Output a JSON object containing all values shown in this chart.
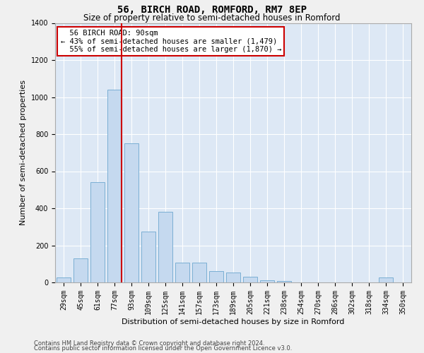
{
  "title": "56, BIRCH ROAD, ROMFORD, RM7 8EP",
  "subtitle": "Size of property relative to semi-detached houses in Romford",
  "xlabel": "Distribution of semi-detached houses by size in Romford",
  "ylabel": "Number of semi-detached properties",
  "categories": [
    "29sqm",
    "45sqm",
    "61sqm",
    "77sqm",
    "93sqm",
    "109sqm",
    "125sqm",
    "141sqm",
    "157sqm",
    "173sqm",
    "189sqm",
    "205sqm",
    "221sqm",
    "238sqm",
    "254sqm",
    "270sqm",
    "286sqm",
    "302sqm",
    "318sqm",
    "334sqm",
    "350sqm"
  ],
  "values": [
    28,
    130,
    540,
    1040,
    750,
    275,
    380,
    105,
    105,
    60,
    55,
    30,
    10,
    8,
    0,
    0,
    0,
    0,
    0,
    28,
    0
  ],
  "bar_color": "#c5d9ef",
  "bar_edge_color": "#7bafd4",
  "red_line_color": "#cc0000",
  "annotation_box_facecolor": "#ffffff",
  "annotation_box_edgecolor": "#cc0000",
  "property_label": "56 BIRCH ROAD: 90sqm",
  "pct_smaller": 43,
  "pct_larger": 55,
  "n_smaller": 1479,
  "n_larger": 1870,
  "footer_line1": "Contains HM Land Registry data © Crown copyright and database right 2024.",
  "footer_line2": "Contains public sector information licensed under the Open Government Licence v3.0.",
  "plot_bg_color": "#dde8f5",
  "fig_bg_color": "#f0f0f0",
  "ylim": [
    0,
    1400
  ],
  "yticks": [
    0,
    200,
    400,
    600,
    800,
    1000,
    1200,
    1400
  ],
  "grid_color": "#ffffff",
  "title_fontsize": 10,
  "subtitle_fontsize": 8.5,
  "ylabel_fontsize": 8,
  "xlabel_fontsize": 8,
  "tick_fontsize": 7,
  "ann_fontsize": 7.5,
  "footer_fontsize": 6
}
